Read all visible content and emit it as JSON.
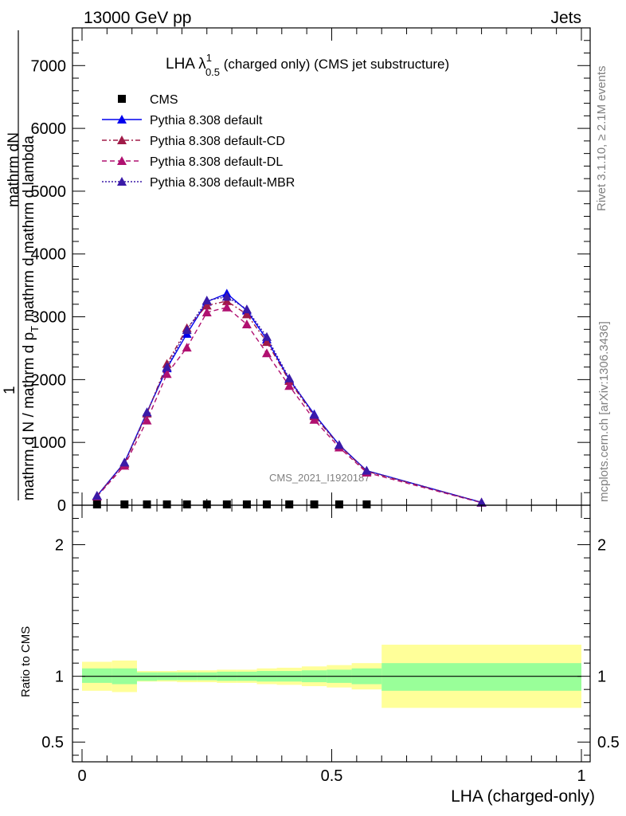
{
  "header": {
    "left": "13000 GeV pp",
    "right": "Jets"
  },
  "side_labels": {
    "rivet": "Rivet 3.1.10, ≥ 2.1M events",
    "mcplots": "mcplots.cern.ch [arXiv:1306.3436]"
  },
  "title_parts": {
    "main": "LHA λ",
    "sup": "1",
    "sub": "0.5",
    "rest": " (charged only) (CMS jet substructure)"
  },
  "ylabel_main": {
    "one": "1",
    "num": "mathrm d",
    "num2": "N",
    "den": "mathrm d N / mathrm d p",
    "den2": "T",
    "den3": " mathrm d",
    "den4": " mathrm d lambda"
  },
  "ylabel_ratio": "Ratio to CMS",
  "xlabel": "LHA (charged-only)",
  "watermark": "CMS_2021_I1920187",
  "colors": {
    "cms": "#000000",
    "default": "#0000ee",
    "default_cd": "#a01b48",
    "default_dl": "#b01070",
    "default_mbr": "#3a1aa8",
    "band_inner": "#99ff99",
    "band_outer": "#ffff99"
  },
  "chart_data": {
    "type": "line",
    "xlabel": "LHA (charged-only)",
    "xlim": [
      0,
      1
    ],
    "main_panel": {
      "ylim": [
        0,
        7600
      ],
      "yticks": [
        {
          "v": 0,
          "label": "0"
        },
        {
          "v": 1000,
          "label": "1000"
        },
        {
          "v": 2000,
          "label": "2000"
        },
        {
          "v": 3000,
          "label": "3000"
        },
        {
          "v": 4000,
          "label": "4000"
        },
        {
          "v": 5000,
          "label": "5000"
        },
        {
          "v": 6000,
          "label": "6000"
        },
        {
          "v": 7000,
          "label": "7000"
        }
      ],
      "legend_position": "top-left",
      "series": [
        {
          "name": "CMS",
          "style": "marker",
          "color": "#000000",
          "x": [
            0.03,
            0.085,
            0.13,
            0.17,
            0.21,
            0.25,
            0.29,
            0.33,
            0.37,
            0.415,
            0.465,
            0.515,
            0.57
          ],
          "y": [
            8,
            8,
            8,
            8,
            8,
            8,
            8,
            8,
            8,
            8,
            8,
            8,
            8
          ]
        },
        {
          "name": "Pythia 8.308 default",
          "style": "solid",
          "color": "#0000ee",
          "x": [
            0.03,
            0.085,
            0.13,
            0.17,
            0.21,
            0.25,
            0.29,
            0.33,
            0.37,
            0.415,
            0.465,
            0.515,
            0.57,
            0.8
          ],
          "y": [
            150,
            680,
            1480,
            2180,
            2730,
            3240,
            3370,
            3100,
            2640,
            2000,
            1450,
            960,
            550,
            45
          ]
        },
        {
          "name": "Pythia 8.308 default-CD",
          "style": "dashdot",
          "color": "#a01b48",
          "x": [
            0.03,
            0.085,
            0.13,
            0.17,
            0.21,
            0.25,
            0.29,
            0.33,
            0.37,
            0.415,
            0.465,
            0.515,
            0.57,
            0.8
          ],
          "y": [
            150,
            660,
            1460,
            2250,
            2820,
            3180,
            3250,
            3040,
            2600,
            1980,
            1420,
            950,
            540,
            45
          ]
        },
        {
          "name": "Pythia 8.308 default-DL",
          "style": "dashed",
          "color": "#b01070",
          "x": [
            0.03,
            0.085,
            0.13,
            0.17,
            0.21,
            0.25,
            0.29,
            0.33,
            0.37,
            0.415,
            0.465,
            0.515,
            0.57,
            0.8
          ],
          "y": [
            140,
            630,
            1350,
            2090,
            2510,
            3070,
            3150,
            2880,
            2420,
            1900,
            1360,
            920,
            520,
            40
          ]
        },
        {
          "name": "Pythia 8.308 default-MBR",
          "style": "dotted",
          "color": "#3a1aa8",
          "x": [
            0.03,
            0.085,
            0.13,
            0.17,
            0.21,
            0.25,
            0.29,
            0.33,
            0.37,
            0.415,
            0.465,
            0.515,
            0.57,
            0.8
          ],
          "y": [
            150,
            680,
            1480,
            2200,
            2790,
            3260,
            3320,
            3120,
            2680,
            2020,
            1440,
            960,
            550,
            45
          ]
        }
      ]
    },
    "ratio_panel": {
      "ylim": [
        0.35,
        2.3
      ],
      "yticks": [
        {
          "v": 0.5,
          "label": "0.5"
        },
        {
          "v": 1,
          "label": "1"
        },
        {
          "v": 2,
          "label": "2"
        }
      ],
      "bins": [
        [
          0.0,
          0.06
        ],
        [
          0.06,
          0.11
        ],
        [
          0.11,
          0.15
        ],
        [
          0.15,
          0.19
        ],
        [
          0.19,
          0.23
        ],
        [
          0.23,
          0.27
        ],
        [
          0.27,
          0.31
        ],
        [
          0.31,
          0.35
        ],
        [
          0.35,
          0.39
        ],
        [
          0.39,
          0.44
        ],
        [
          0.44,
          0.49
        ],
        [
          0.49,
          0.54
        ],
        [
          0.54,
          0.6
        ],
        [
          0.6,
          1.0
        ]
      ],
      "inner": [
        [
          0.95,
          1.06
        ],
        [
          0.94,
          1.06
        ],
        [
          0.965,
          1.03
        ],
        [
          0.97,
          1.03
        ],
        [
          0.97,
          1.03
        ],
        [
          0.97,
          1.03
        ],
        [
          0.965,
          1.035
        ],
        [
          0.965,
          1.035
        ],
        [
          0.96,
          1.04
        ],
        [
          0.96,
          1.04
        ],
        [
          0.955,
          1.045
        ],
        [
          0.95,
          1.05
        ],
        [
          0.94,
          1.06
        ],
        [
          0.89,
          1.1
        ]
      ],
      "outer": [
        [
          0.89,
          1.11
        ],
        [
          0.88,
          1.12
        ],
        [
          0.96,
          1.04
        ],
        [
          0.96,
          1.04
        ],
        [
          0.955,
          1.045
        ],
        [
          0.955,
          1.045
        ],
        [
          0.95,
          1.05
        ],
        [
          0.95,
          1.05
        ],
        [
          0.94,
          1.06
        ],
        [
          0.935,
          1.065
        ],
        [
          0.925,
          1.075
        ],
        [
          0.915,
          1.085
        ],
        [
          0.9,
          1.1
        ],
        [
          0.76,
          1.24
        ]
      ],
      "xticks": [
        {
          "v": 0,
          "label": "0"
        },
        {
          "v": 0.5,
          "label": "0.5"
        },
        {
          "v": 1,
          "label": "1"
        }
      ]
    }
  }
}
